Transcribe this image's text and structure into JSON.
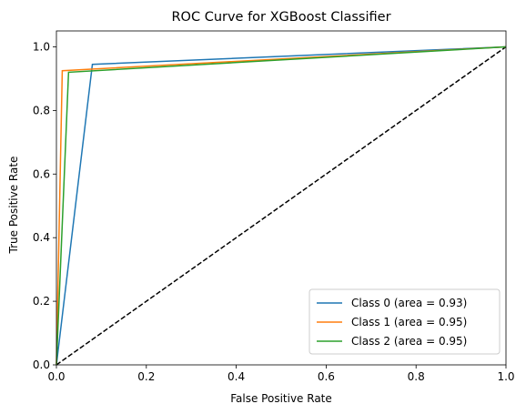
{
  "chart_data": {
    "type": "line",
    "title": "ROC Curve for XGBoost Classifier",
    "xlabel": "False Positive Rate",
    "ylabel": "True Positive Rate",
    "xlim": [
      0.0,
      1.0
    ],
    "ylim": [
      0.0,
      1.05
    ],
    "xticks": [
      "0.0",
      "0.2",
      "0.4",
      "0.6",
      "0.8",
      "1.0"
    ],
    "yticks": [
      "0.0",
      "0.2",
      "0.4",
      "0.6",
      "0.8",
      "1.0"
    ],
    "grid": false,
    "legend_position": "lower-right",
    "series": [
      {
        "name": "Class 0 (area = 0.93)",
        "color": "#1f77b4",
        "x": [
          0.0,
          0.08,
          1.0
        ],
        "y": [
          0.0,
          0.945,
          1.0
        ]
      },
      {
        "name": "Class 1 (area = 0.95)",
        "color": "#ff7f0e",
        "x": [
          0.0,
          0.013,
          1.0
        ],
        "y": [
          0.0,
          0.925,
          1.0
        ]
      },
      {
        "name": "Class 2 (area = 0.95)",
        "color": "#2ca02c",
        "x": [
          0.0,
          0.027,
          1.0
        ],
        "y": [
          0.0,
          0.92,
          1.0
        ]
      }
    ],
    "reference_line": {
      "style": "dashed",
      "color": "#000000",
      "x": [
        0.0,
        1.0
      ],
      "y": [
        0.0,
        1.0
      ]
    }
  }
}
